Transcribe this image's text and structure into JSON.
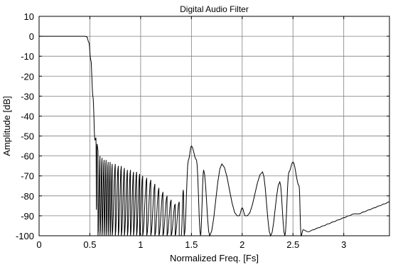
{
  "chart_data": {
    "type": "line",
    "title": "Digital Audio Filter",
    "xlabel": "Normalized Freq. [Fs]",
    "ylabel": "Amplitude [dB]",
    "xlim": [
      0,
      3.45
    ],
    "ylim": [
      -100,
      10
    ],
    "x_ticks": [
      0,
      0.5,
      1,
      1.5,
      2,
      2.5,
      3
    ],
    "x_tick_labels": [
      "0",
      "0.5",
      "1",
      "1.5",
      "2",
      "2.5",
      "3"
    ],
    "y_ticks": [
      10,
      0,
      -10,
      -20,
      -30,
      -40,
      -50,
      -60,
      -70,
      -80,
      -90,
      -100
    ],
    "y_tick_labels": [
      "10",
      "0",
      "-10",
      "-20",
      "-30",
      "-40",
      "-50",
      "-60",
      "-70",
      "-80",
      "-90",
      "-100"
    ],
    "grid": true,
    "legend": "none",
    "line_color": "#000000",
    "series": [
      {
        "passband": [
          [
            0,
            0
          ],
          [
            0.45,
            0
          ],
          [
            0.47,
            -0.3
          ],
          [
            0.49,
            -3
          ],
          [
            0.51,
            -12
          ],
          [
            0.53,
            -30
          ],
          [
            0.55,
            -52
          ]
        ],
        "lobe_peaks": [
          [
            0.56,
            -51
          ],
          [
            0.57,
            -54
          ],
          [
            0.58,
            -57
          ],
          [
            0.6,
            -60
          ],
          [
            0.62,
            -61
          ],
          [
            0.64,
            -62
          ],
          [
            0.66,
            -62
          ],
          [
            0.68,
            -63
          ],
          [
            0.7,
            -63
          ],
          [
            0.72,
            -64
          ],
          [
            0.75,
            -64
          ],
          [
            0.78,
            -65
          ],
          [
            0.81,
            -65
          ],
          [
            0.84,
            -66
          ],
          [
            0.87,
            -67
          ],
          [
            0.9,
            -67
          ],
          [
            0.93,
            -68
          ],
          [
            0.96,
            -68
          ],
          [
            0.99,
            -69
          ],
          [
            1.02,
            -70
          ],
          [
            1.06,
            -71
          ],
          [
            1.1,
            -72
          ],
          [
            1.14,
            -74
          ],
          [
            1.18,
            -76
          ],
          [
            1.22,
            -78
          ],
          [
            1.26,
            -80
          ],
          [
            1.3,
            -82
          ],
          [
            1.34,
            -84
          ],
          [
            1.38,
            -83
          ],
          [
            1.42,
            -77
          ],
          [
            1.47,
            -62
          ],
          [
            1.5,
            -55
          ],
          [
            1.55,
            -62
          ],
          [
            1.62,
            -67
          ],
          [
            1.8,
            -64
          ],
          [
            1.97,
            -90
          ],
          [
            2.0,
            -86
          ],
          [
            2.03,
            -90
          ],
          [
            2.2,
            -68
          ],
          [
            2.37,
            -73
          ],
          [
            2.46,
            -68
          ],
          [
            2.5,
            -63
          ],
          [
            2.56,
            -75
          ],
          [
            2.6,
            -97
          ],
          [
            2.65,
            -98
          ],
          [
            2.7,
            -97
          ],
          [
            2.75,
            -96
          ],
          [
            2.8,
            -95
          ],
          [
            2.85,
            -94
          ],
          [
            2.9,
            -93
          ],
          [
            2.95,
            -92
          ],
          [
            3.0,
            -91
          ],
          [
            3.05,
            -90
          ],
          [
            3.1,
            -89
          ],
          [
            3.15,
            -89
          ],
          [
            3.2,
            -88
          ],
          [
            3.25,
            -87
          ],
          [
            3.3,
            -86
          ],
          [
            3.35,
            -85
          ],
          [
            3.4,
            -84
          ],
          [
            3.45,
            -83
          ]
        ],
        "nulls": [
          [
            0.55,
            -76
          ],
          [
            0.565,
            -87
          ],
          [
            0.58,
            -100
          ],
          [
            0.6,
            -100
          ],
          [
            0.62,
            -100
          ],
          [
            0.64,
            -100
          ],
          [
            0.66,
            -100
          ],
          [
            0.68,
            -100
          ],
          [
            0.7,
            -100
          ],
          [
            0.72,
            -100
          ],
          [
            0.75,
            -100
          ],
          [
            0.78,
            -100
          ],
          [
            0.81,
            -100
          ],
          [
            0.84,
            -100
          ],
          [
            0.87,
            -100
          ],
          [
            0.9,
            -100
          ],
          [
            0.93,
            -100
          ],
          [
            0.96,
            -100
          ],
          [
            0.99,
            -100
          ],
          [
            1.02,
            -100
          ],
          [
            1.06,
            -100
          ],
          [
            1.1,
            -100
          ],
          [
            1.14,
            -100
          ],
          [
            1.18,
            -100
          ],
          [
            1.22,
            -100
          ],
          [
            1.26,
            -100
          ],
          [
            1.3,
            -100
          ],
          [
            1.34,
            -100
          ],
          [
            1.38,
            -100
          ],
          [
            1.4,
            -100
          ],
          [
            1.43,
            -100
          ],
          [
            1.59,
            -100
          ],
          [
            1.68,
            -100
          ],
          [
            1.95,
            -90
          ],
          [
            2.05,
            -90
          ],
          [
            2.28,
            -100
          ],
          [
            2.42,
            -100
          ],
          [
            2.58,
            -100
          ]
        ]
      }
    ]
  }
}
